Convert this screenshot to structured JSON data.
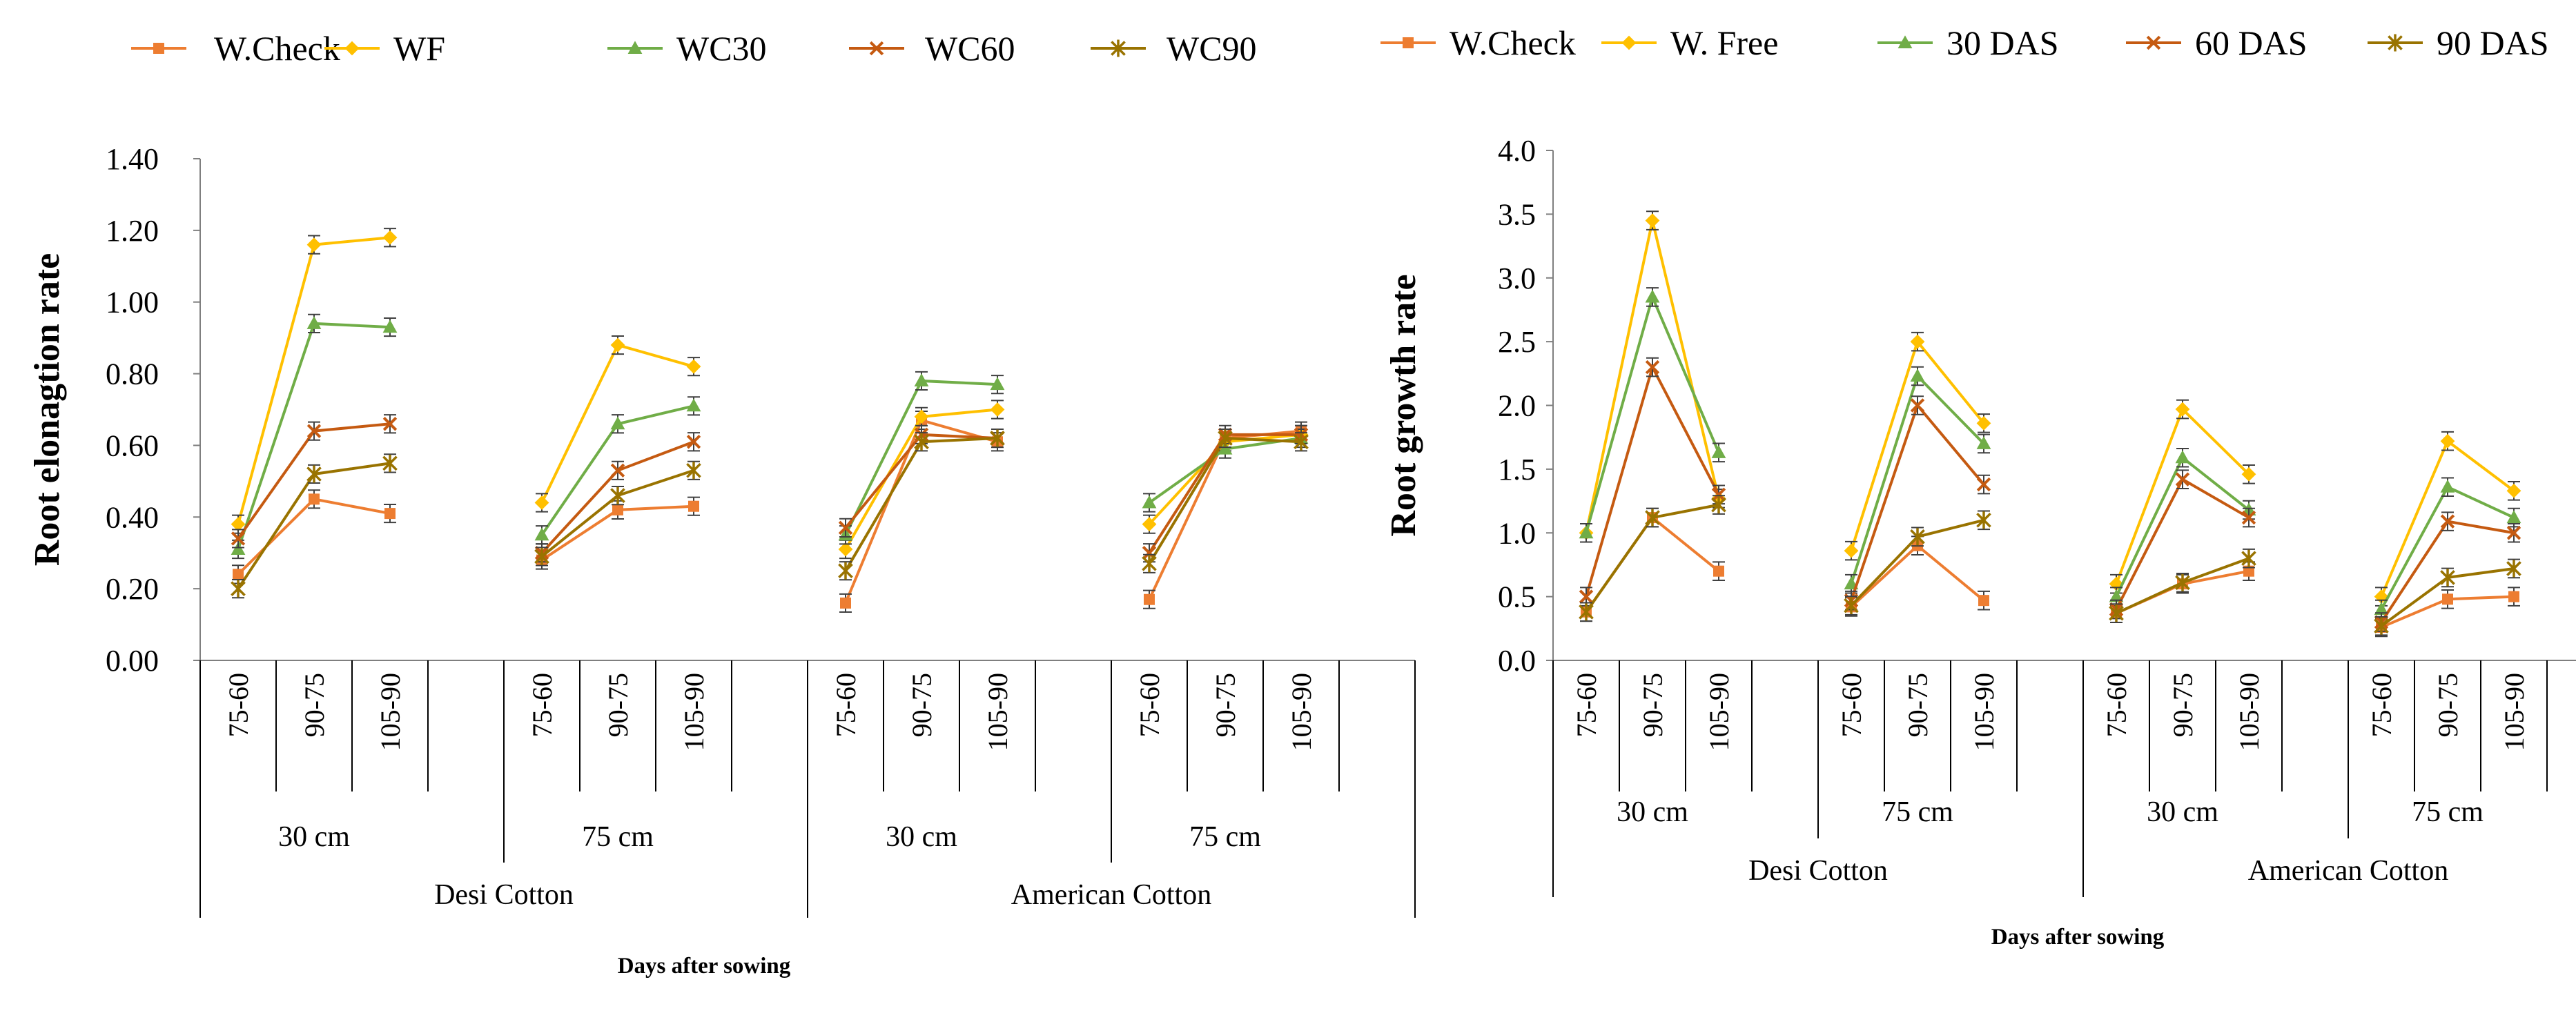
{
  "chart_data": [
    {
      "type": "line",
      "ylabel": "Root elonagtion rate",
      "xlabel": "Days after sowing",
      "ylim": [
        0,
        1.4
      ],
      "ytick_step": 0.2,
      "ytick_labels": [
        "0.00",
        "0.20",
        "0.40",
        "0.60",
        "0.80",
        "1.00",
        "1.20",
        "1.40"
      ],
      "crop_labels": [
        "Desi Cotton",
        "American Cotton"
      ],
      "spacing_labels": [
        "30 cm",
        "75 cm",
        "30 cm",
        "75 cm"
      ],
      "interval_labels": [
        "75-60",
        "90-75",
        "105-90"
      ],
      "legend_position": "top",
      "series": [
        {
          "name": "W.Check",
          "color": "#ED7D31",
          "marker": "square",
          "values": [
            [
              0.24,
              0.45,
              0.41
            ],
            [
              0.28,
              0.42,
              0.43
            ],
            [
              0.16,
              0.67,
              0.61
            ],
            [
              0.17,
              0.62,
              0.64
            ]
          ]
        },
        {
          "name": "WF",
          "color": "#FFC000",
          "marker": "diamond",
          "values": [
            [
              0.38,
              1.16,
              1.18
            ],
            [
              0.44,
              0.88,
              0.82
            ],
            [
              0.31,
              0.68,
              0.7
            ],
            [
              0.38,
              0.61,
              0.63
            ]
          ]
        },
        {
          "name": "WC30",
          "color": "#70AD47",
          "marker": "triangle",
          "values": [
            [
              0.31,
              0.94,
              0.93
            ],
            [
              0.35,
              0.66,
              0.71
            ],
            [
              0.35,
              0.78,
              0.77
            ],
            [
              0.44,
              0.59,
              0.62
            ]
          ]
        },
        {
          "name": "WC60",
          "color": "#C55A11",
          "marker": "x",
          "values": [
            [
              0.34,
              0.64,
              0.66
            ],
            [
              0.3,
              0.53,
              0.61
            ],
            [
              0.37,
              0.63,
              0.62
            ],
            [
              0.3,
              0.63,
              0.63
            ]
          ]
        },
        {
          "name": "WC90",
          "color": "#997300",
          "marker": "star",
          "values": [
            [
              0.2,
              0.52,
              0.55
            ],
            [
              0.29,
              0.46,
              0.53
            ],
            [
              0.25,
              0.61,
              0.62
            ],
            [
              0.27,
              0.62,
              0.61
            ]
          ]
        }
      ],
      "error_bars": true
    },
    {
      "type": "line",
      "ylabel": "Root growth  rate",
      "xlabel": "Days after sowing",
      "ylim": [
        0,
        4.0
      ],
      "ytick_step": 0.5,
      "ytick_labels": [
        "0.0",
        "0.5",
        "1.0",
        "1.5",
        "2.0",
        "2.5",
        "3.0",
        "3.5",
        "4.0"
      ],
      "crop_labels": [
        "Desi Cotton",
        "American Cotton"
      ],
      "spacing_labels": [
        "30 cm",
        "75 cm",
        "30 cm",
        "75 cm"
      ],
      "interval_labels": [
        "75-60",
        "90-75",
        "105-90"
      ],
      "legend_position": "top",
      "series": [
        {
          "name": "W.Check",
          "color": "#ED7D31",
          "marker": "square",
          "values": [
            [
              0.38,
              1.12,
              0.7
            ],
            [
              0.42,
              0.9,
              0.47
            ],
            [
              0.37,
              0.6,
              0.7
            ],
            [
              0.26,
              0.48,
              0.5
            ]
          ]
        },
        {
          "name": "W. Free",
          "color": "#FFC000",
          "marker": "diamond",
          "values": [
            [
              1.0,
              3.45,
              1.27
            ],
            [
              0.86,
              2.5,
              1.86
            ],
            [
              0.6,
              1.97,
              1.46
            ],
            [
              0.5,
              1.72,
              1.33
            ]
          ]
        },
        {
          "name": "30 DAS",
          "color": "#70AD47",
          "marker": "triangle",
          "values": [
            [
              1.0,
              2.85,
              1.63
            ],
            [
              0.6,
              2.23,
              1.7
            ],
            [
              0.5,
              1.59,
              1.18
            ],
            [
              0.4,
              1.36,
              1.12
            ]
          ]
        },
        {
          "name": "60 DAS",
          "color": "#C55A11",
          "marker": "x",
          "values": [
            [
              0.5,
              2.3,
              1.3
            ],
            [
              0.47,
              2.0,
              1.38
            ],
            [
              0.4,
              1.42,
              1.12
            ],
            [
              0.3,
              1.09,
              1.0
            ]
          ]
        },
        {
          "name": "90 DAS",
          "color": "#997300",
          "marker": "star",
          "values": [
            [
              0.38,
              1.12,
              1.22
            ],
            [
              0.43,
              0.97,
              1.1
            ],
            [
              0.37,
              0.61,
              0.8
            ],
            [
              0.27,
              0.65,
              0.72
            ]
          ]
        }
      ],
      "error_bars": true
    }
  ]
}
